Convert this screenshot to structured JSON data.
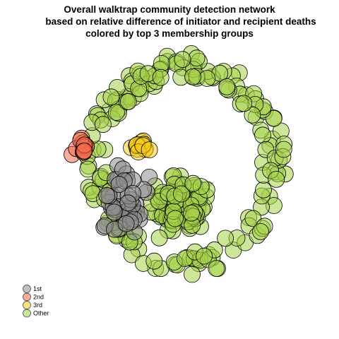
{
  "chart_data": {
    "type": "network",
    "title": [
      "Overall walktrap community detection network",
      "based on relative difference of initiator and recipient deaths",
      "colored by top 3 membership groups"
    ],
    "legend": {
      "placement": "bottom-left",
      "items": [
        {
          "label": "1st",
          "color": "#8c8c8c"
        },
        {
          "label": "2nd",
          "color": "#f46a4e"
        },
        {
          "label": "3rd",
          "color": "#f5cc1a"
        },
        {
          "label": "Other",
          "color": "#a6d14a"
        }
      ]
    },
    "groups": [
      {
        "name": "1st",
        "color": "#8c8c8c",
        "node_count": 45
      },
      {
        "name": "2nd",
        "color": "#f46a4e",
        "node_count": 14
      },
      {
        "name": "3rd",
        "color": "#f5cc1a",
        "node_count": 12
      },
      {
        "name": "Other",
        "color": "#a6d14a",
        "node_count": 290
      }
    ],
    "node_alpha": 0.55,
    "edge_color": "#b0b0b0",
    "grid": false,
    "axes": false
  }
}
